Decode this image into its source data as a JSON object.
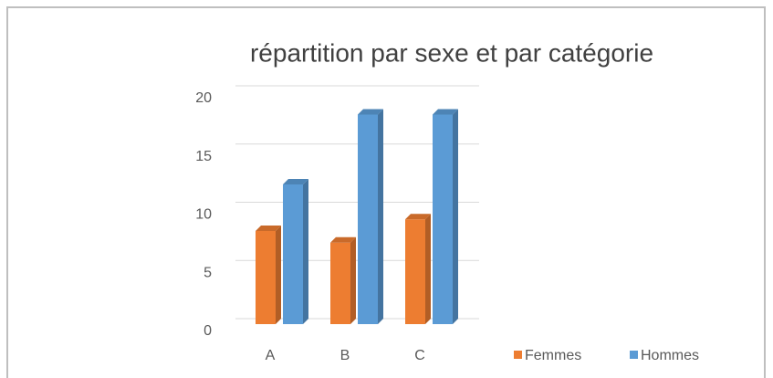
{
  "chart_data": {
    "type": "bar",
    "title": "répartition par sexe et par catégorie",
    "categories": [
      "A",
      "B",
      "C"
    ],
    "series": [
      {
        "name": "Femmes",
        "color": "#ED7D31",
        "values": [
          8,
          7,
          9
        ]
      },
      {
        "name": "Hommes",
        "color": "#5B9BD5",
        "values": [
          12,
          18,
          18
        ]
      }
    ],
    "ylim": [
      0,
      20
    ],
    "yticks": [
      0,
      5,
      10,
      15,
      20
    ],
    "grid": true,
    "legend": "bottom-right"
  }
}
